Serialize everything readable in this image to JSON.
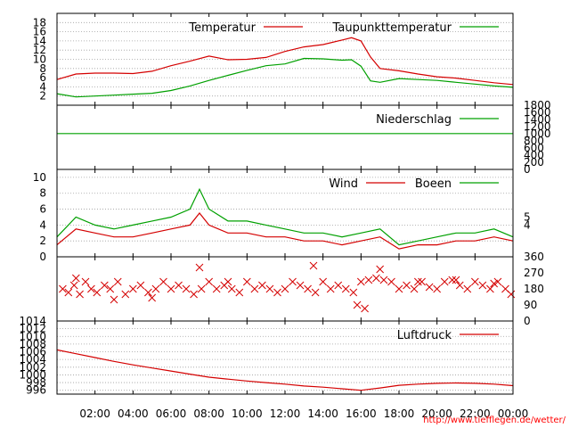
{
  "colors": {
    "primary_series": "#d40000",
    "secondary_series": "#00a000"
  },
  "credit": "http://www.tiefflegen.de/wetter/",
  "chart_data": [
    {
      "type": "line",
      "legend_placement": "top-right",
      "ylim": [
        0,
        20
      ],
      "yticks": [
        "2",
        "4",
        "6",
        "8",
        "10",
        "12",
        "14",
        "16",
        "18"
      ],
      "x": [
        "00:00",
        "01:00",
        "02:00",
        "03:00",
        "04:00",
        "05:00",
        "06:00",
        "07:00",
        "08:00",
        "09:00",
        "10:00",
        "11:00",
        "12:00",
        "13:00",
        "14:00",
        "15:00",
        "15:30",
        "16:00",
        "16:30",
        "17:00",
        "18:00",
        "19:00",
        "20:00",
        "21:00",
        "22:00",
        "23:00",
        "24:00"
      ],
      "series": [
        {
          "name": "Temperatur",
          "color": "#d40000",
          "values": [
            5.6,
            6.8,
            7.0,
            7.0,
            6.9,
            7.4,
            8.6,
            9.6,
            10.7,
            9.9,
            10.0,
            10.4,
            11.7,
            12.7,
            13.2,
            14.2,
            14.7,
            14.0,
            10.5,
            8.0,
            7.5,
            6.8,
            6.2,
            5.9,
            5.4,
            4.9,
            4.5
          ]
        },
        {
          "name": "Taupunkttemperatur",
          "color": "#00a000",
          "values": [
            2.5,
            1.8,
            2.0,
            2.2,
            2.4,
            2.6,
            3.2,
            4.2,
            5.4,
            6.5,
            7.6,
            8.6,
            9.0,
            10.2,
            10.1,
            9.8,
            9.9,
            8.5,
            5.3,
            5.0,
            5.8,
            5.6,
            5.4,
            5.0,
            4.6,
            4.2,
            3.9
          ]
        }
      ]
    },
    {
      "type": "line",
      "legend_placement": "top-right",
      "ylim": [
        0,
        1800
      ],
      "yticks": [
        "0",
        "200",
        "400",
        "600",
        "800",
        "1000",
        "1200",
        "1400",
        "1600",
        "1800"
      ],
      "x": [
        "00:00",
        "12:00",
        "24:00"
      ],
      "series": [
        {
          "name": "Niederschlag",
          "color": "#00a000",
          "values": [
            1005,
            1005,
            1005
          ]
        }
      ]
    },
    {
      "type": "line",
      "legend_placement": "top-right",
      "ylim": [
        0,
        11
      ],
      "yticks": [
        "0",
        "2",
        "4",
        "6",
        "8",
        "10"
      ],
      "yticks_right": [
        "4",
        "5"
      ],
      "x": [
        "00:00",
        "01:00",
        "02:00",
        "03:00",
        "04:00",
        "05:00",
        "06:00",
        "07:00",
        "07:30",
        "08:00",
        "09:00",
        "10:00",
        "11:00",
        "12:00",
        "13:00",
        "14:00",
        "15:00",
        "16:00",
        "17:00",
        "18:00",
        "19:00",
        "20:00",
        "21:00",
        "22:00",
        "23:00",
        "24:00"
      ],
      "series": [
        {
          "name": "Wind",
          "color": "#d40000",
          "values": [
            1.5,
            3.5,
            3.0,
            2.5,
            2.5,
            3.0,
            3.5,
            4.0,
            5.5,
            4.0,
            3.0,
            3.0,
            2.5,
            2.5,
            2.0,
            2.0,
            1.5,
            2.0,
            2.5,
            1.0,
            1.5,
            1.5,
            2.0,
            2.0,
            2.5,
            2.0
          ]
        },
        {
          "name": "Boeen",
          "color": "#00a000",
          "values": [
            2.5,
            5.0,
            4.0,
            3.5,
            4.0,
            4.5,
            5.0,
            6.0,
            8.5,
            6.0,
            4.5,
            4.5,
            4.0,
            3.5,
            3.0,
            3.0,
            2.5,
            3.0,
            3.5,
            1.5,
            2.0,
            2.5,
            3.0,
            3.0,
            3.5,
            2.5
          ]
        }
      ]
    },
    {
      "type": "scatter",
      "ylim": [
        0,
        360
      ],
      "yticks": [
        "0",
        "90",
        "180",
        "270",
        "360"
      ],
      "x": [
        0.3,
        0.6,
        0.9,
        1.2,
        1.5,
        1.8,
        2.1,
        2.5,
        2.8,
        3.2,
        3.6,
        4.0,
        4.4,
        4.8,
        5.2,
        5.6,
        6.0,
        6.4,
        6.8,
        7.2,
        7.6,
        8.0,
        8.4,
        8.8,
        9.2,
        9.6,
        10.0,
        10.4,
        10.8,
        11.2,
        11.6,
        12.0,
        12.4,
        12.8,
        13.2,
        13.6,
        14.0,
        14.4,
        14.8,
        15.2,
        15.6,
        16.0,
        16.4,
        16.8,
        17.2,
        17.6,
        18.0,
        18.4,
        18.8,
        19.2,
        19.6,
        20.0,
        20.4,
        20.8,
        21.2,
        21.6,
        22.0,
        22.4,
        22.8,
        23.2,
        23.6,
        1.0,
        3.0,
        5.0,
        7.5,
        9.0,
        13.5,
        15.8,
        16.2,
        17.0,
        19.0,
        21.0,
        23.0,
        23.9
      ],
      "y": [
        180,
        160,
        200,
        150,
        220,
        180,
        160,
        200,
        180,
        220,
        150,
        180,
        200,
        160,
        180,
        220,
        180,
        200,
        180,
        150,
        180,
        220,
        180,
        200,
        180,
        160,
        220,
        180,
        200,
        180,
        160,
        180,
        220,
        200,
        180,
        160,
        220,
        180,
        200,
        180,
        160,
        220,
        230,
        240,
        230,
        220,
        180,
        200,
        180,
        220,
        190,
        180,
        220,
        230,
        200,
        180,
        220,
        200,
        180,
        220,
        180,
        240,
        120,
        130,
        300,
        220,
        310,
        90,
        70,
        290,
        220,
        230,
        210,
        150
      ],
      "series": [
        {
          "name": "",
          "color": "#d40000"
        }
      ]
    },
    {
      "type": "line",
      "legend_placement": "top-right",
      "ylim": [
        995,
        1014
      ],
      "yticks": [
        "996",
        "998",
        "1000",
        "1002",
        "1004",
        "1006",
        "1008",
        "1010",
        "1012",
        "1014"
      ],
      "x": [
        "00:00",
        "01:00",
        "02:00",
        "03:00",
        "04:00",
        "05:00",
        "06:00",
        "07:00",
        "08:00",
        "09:00",
        "10:00",
        "11:00",
        "12:00",
        "13:00",
        "14:00",
        "15:00",
        "16:00",
        "17:00",
        "18:00",
        "19:00",
        "20:00",
        "21:00",
        "22:00",
        "23:00",
        "24:00"
      ],
      "xticks": [
        "02:00",
        "04:00",
        "06:00",
        "08:00",
        "10:00",
        "12:00",
        "14:00",
        "16:00",
        "18:00",
        "20:00",
        "22:00",
        "00:00"
      ],
      "series": [
        {
          "name": "Luftdruck",
          "color": "#d40000",
          "values": [
            1006.5,
            1005.5,
            1004.5,
            1003.5,
            1002.6,
            1001.8,
            1001.0,
            1000.2,
            999.4,
            998.9,
            998.4,
            998.0,
            997.6,
            997.1,
            996.8,
            996.4,
            996.0,
            996.6,
            997.3,
            997.6,
            997.8,
            997.9,
            997.8,
            997.6,
            997.2
          ]
        }
      ]
    }
  ]
}
